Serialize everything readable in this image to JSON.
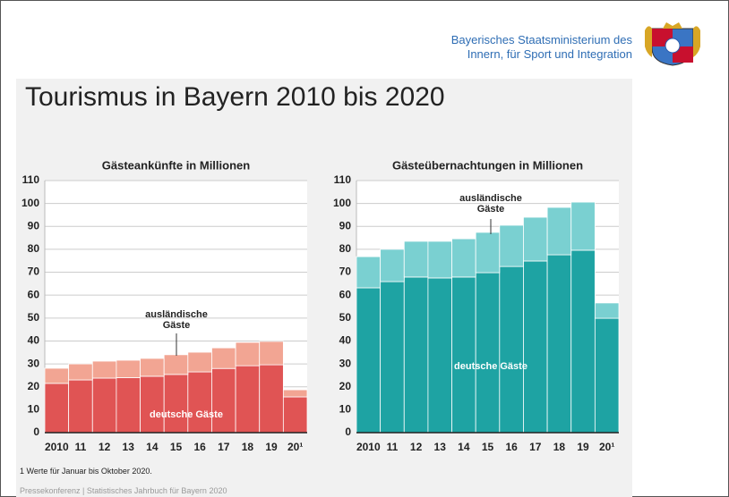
{
  "header": {
    "ministry_line1": "Bayerisches Staatsministerium des",
    "ministry_line2": "Innern, für Sport und Integration"
  },
  "title": "Tourismus in Bayern 2010 bis 2020",
  "chart_data": [
    {
      "type": "bar",
      "stacked": true,
      "title": "Gästeankünfte in Millionen",
      "categories": [
        "2010",
        "11",
        "12",
        "13",
        "14",
        "15",
        "16",
        "17",
        "18",
        "19",
        "20¹"
      ],
      "series": [
        {
          "name": "deutsche Gäste",
          "color": "#e05454",
          "values": [
            21.5,
            23,
            23.8,
            24,
            24.6,
            25.4,
            26.5,
            28,
            29.2,
            29.6,
            15.6
          ]
        },
        {
          "name": "ausländische Gäste",
          "color": "#f2a593",
          "values": [
            6.6,
            7,
            7.4,
            7.6,
            7.8,
            8.6,
            8.6,
            9,
            10.2,
            10.2,
            3.1
          ]
        }
      ],
      "ylim": [
        0,
        110
      ],
      "yticks": [
        0,
        10,
        20,
        30,
        40,
        50,
        60,
        70,
        80,
        90,
        100,
        110
      ],
      "grid": true
    },
    {
      "type": "bar",
      "stacked": true,
      "title": "Gästeübernachtungen in Millionen",
      "categories": [
        "2010",
        "11",
        "12",
        "13",
        "14",
        "15",
        "16",
        "17",
        "18",
        "19",
        "20¹"
      ],
      "series": [
        {
          "name": "deutsche Gäste",
          "color": "#1ea3a3",
          "values": [
            63.2,
            65.9,
            67.9,
            67.5,
            67.9,
            69.8,
            72.5,
            74.9,
            77.6,
            79.6,
            49.9
          ]
        },
        {
          "name": "ausländische Gäste",
          "color": "#7ad0d1",
          "values": [
            13.6,
            14.1,
            15.6,
            16,
            16.7,
            17.6,
            18,
            19.1,
            20.7,
            21,
            6.7
          ]
        }
      ],
      "ylim": [
        0,
        110
      ],
      "yticks": [
        0,
        10,
        20,
        30,
        40,
        50,
        60,
        70,
        80,
        90,
        100,
        110
      ],
      "grid": true
    }
  ],
  "footnote": "1  Werte für Januar bis Oktober 2020.",
  "footer": "Pressekonferenz | Statistisches Jahrbuch für Bayern 2020"
}
